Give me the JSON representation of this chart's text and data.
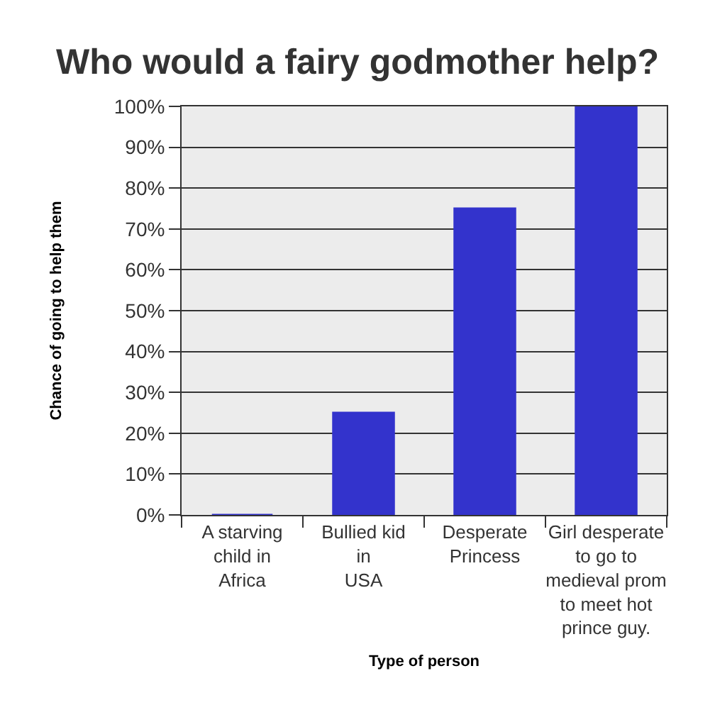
{
  "chart_data": {
    "type": "bar",
    "title": "Who would a fairy godmother help?",
    "xlabel": "Type of person",
    "ylabel": "Chance of going to help them",
    "categories": [
      "A starving\nchild in\nAfrica",
      "Bullied kid\nin\nUSA",
      "Desperate\nPrincess",
      "Girl desperate\nto go to\nmedieval prom\nto meet hot\nprince guy."
    ],
    "values": [
      0,
      25,
      75,
      100
    ],
    "color": "#3333cc",
    "ylim": [
      0,
      100
    ],
    "yticks": [
      {
        "value": 0,
        "label": "0%"
      },
      {
        "value": 10,
        "label": "10%"
      },
      {
        "value": 20,
        "label": "20%"
      },
      {
        "value": 30,
        "label": "30%"
      },
      {
        "value": 40,
        "label": "40%"
      },
      {
        "value": 50,
        "label": "50%"
      },
      {
        "value": 60,
        "label": "60%"
      },
      {
        "value": 70,
        "label": "70%"
      },
      {
        "value": 80,
        "label": "80%"
      },
      {
        "value": 90,
        "label": "90%"
      },
      {
        "value": 100,
        "label": "100%"
      }
    ],
    "grid": "y"
  }
}
